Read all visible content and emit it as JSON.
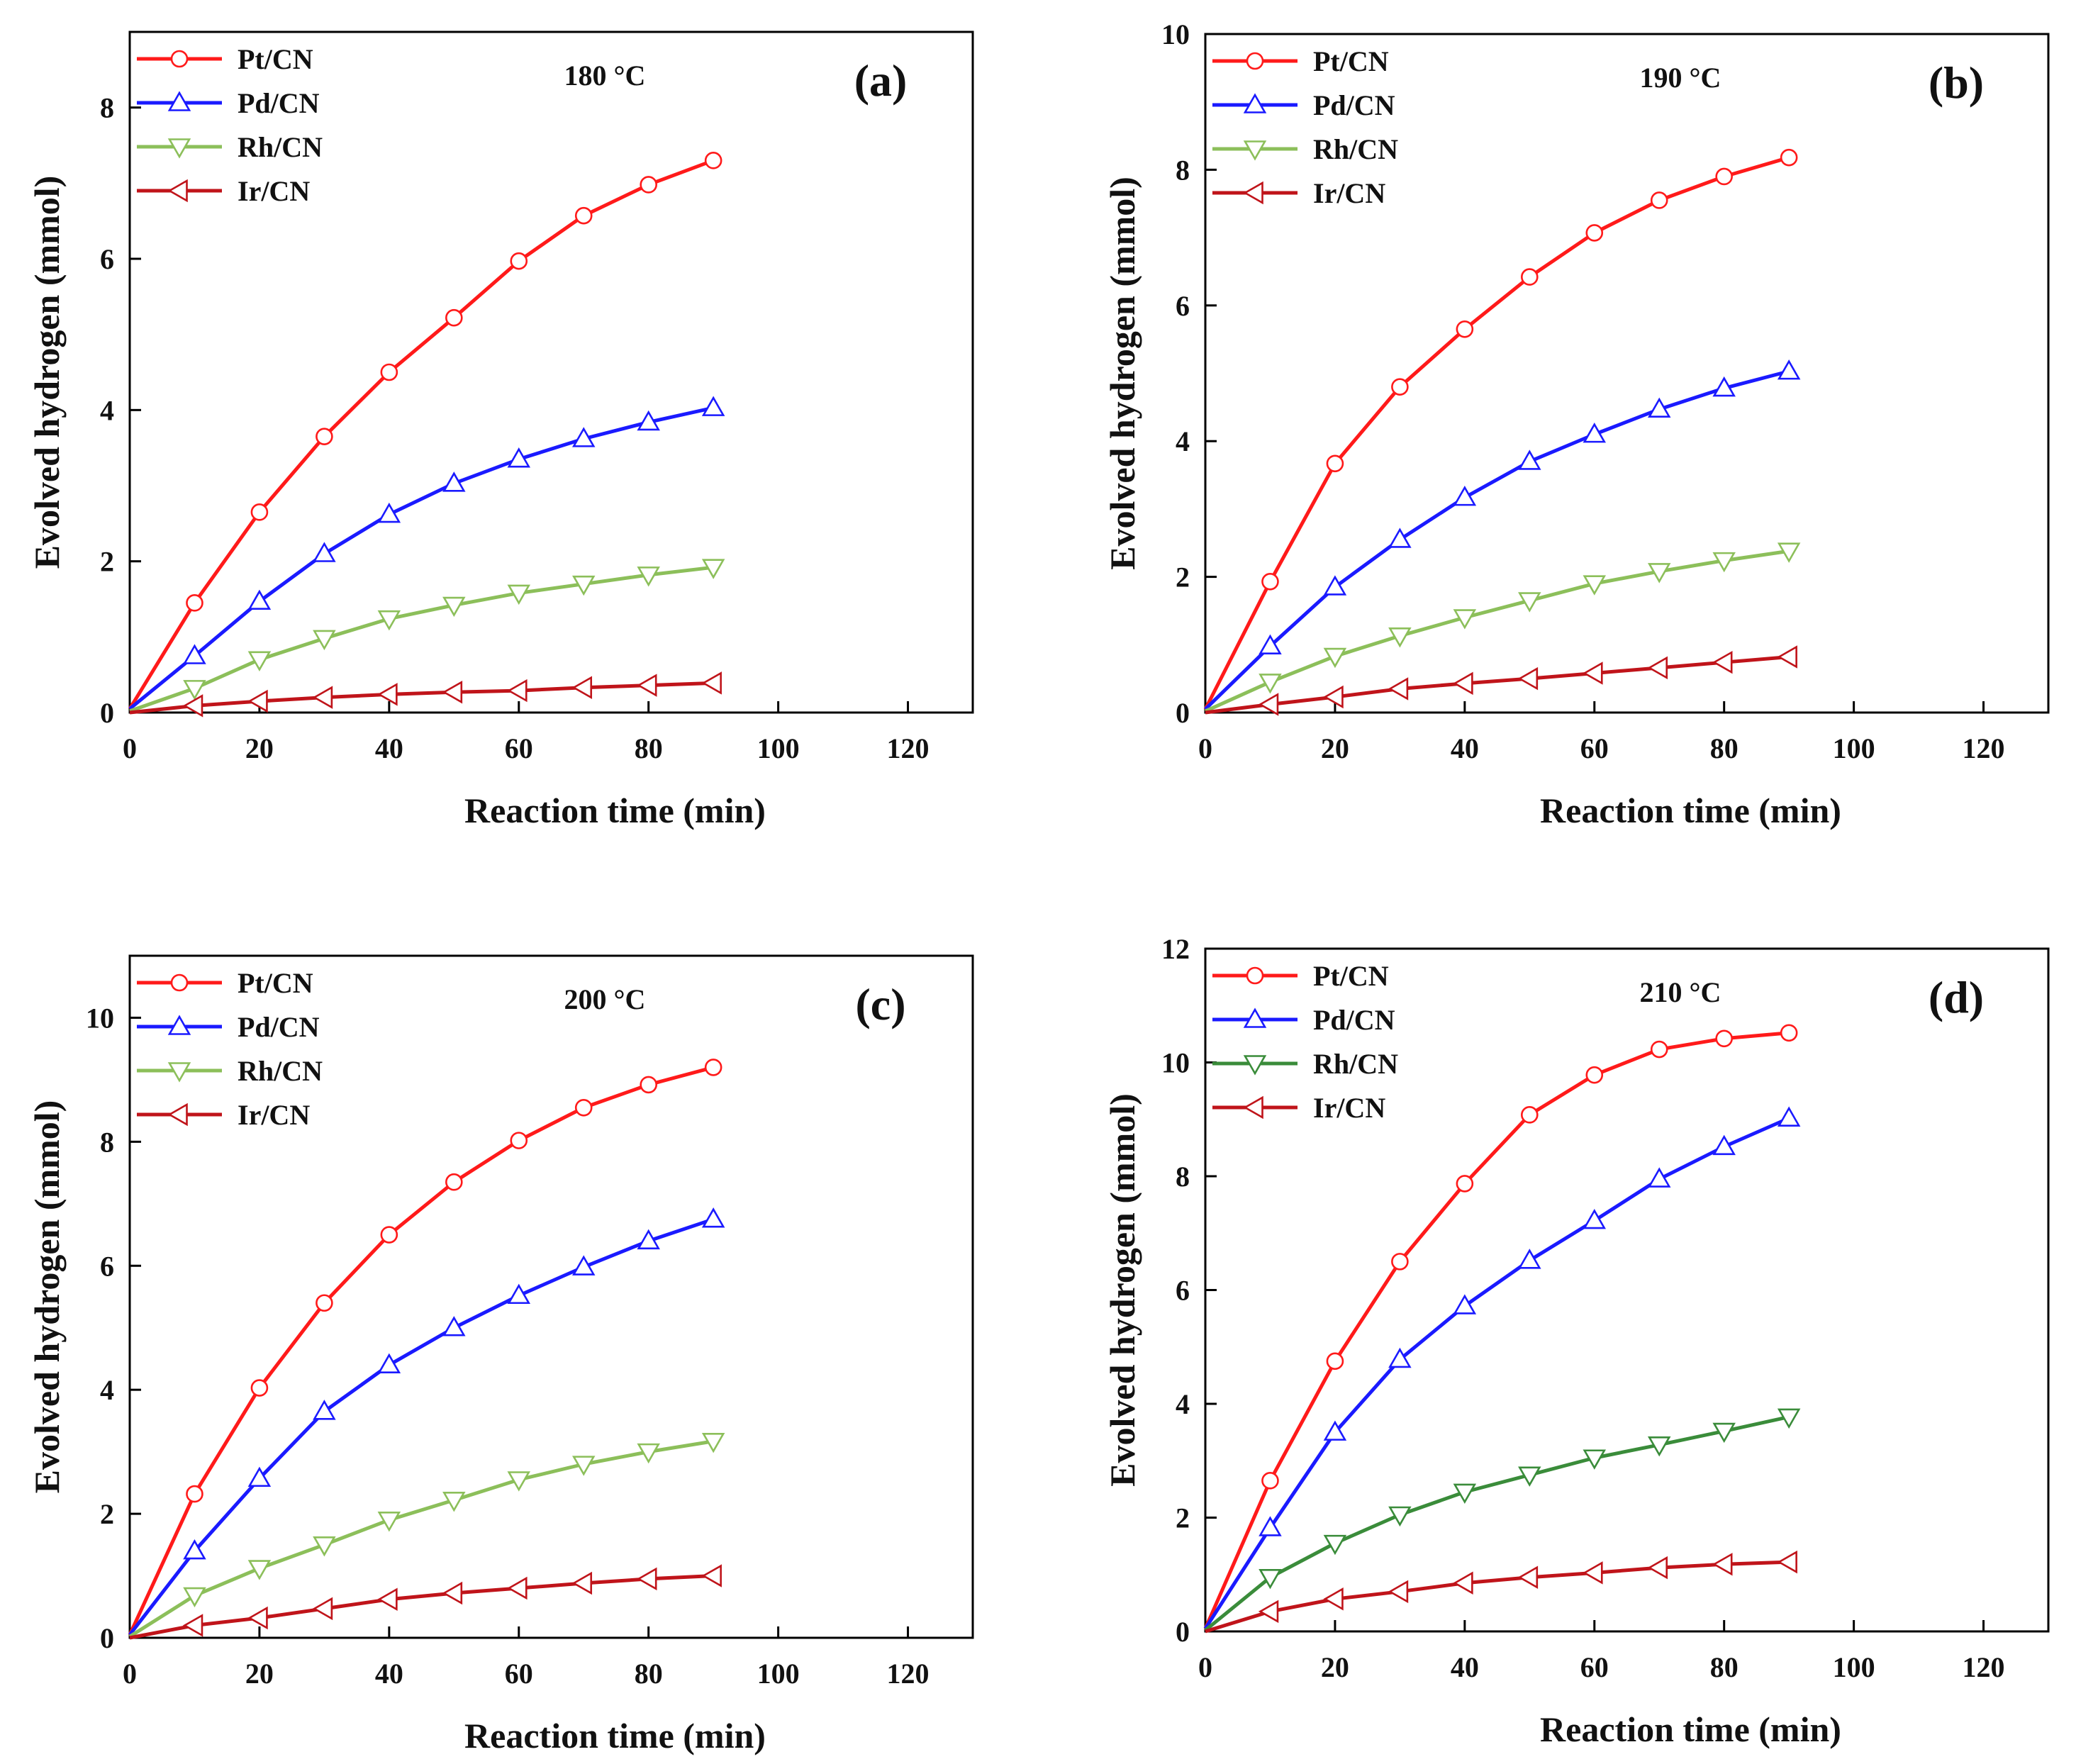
{
  "chart_data": [
    {
      "type": "line",
      "panel_label": "(a)",
      "temperature": "180 °C",
      "xlabel": "Reaction time (min)",
      "ylabel": "Evolved hydrogen (mmol)",
      "xlim": [
        0,
        130
      ],
      "ylim": [
        0,
        9
      ],
      "xticks": [
        0,
        20,
        40,
        60,
        80,
        100,
        120
      ],
      "yticks": [
        0,
        2,
        4,
        6,
        8
      ],
      "x": [
        0,
        10,
        20,
        30,
        40,
        50,
        60,
        70,
        80,
        90
      ],
      "series": [
        {
          "name": "Pt/CN",
          "color": "#ff1a1a",
          "marker": "circle",
          "values": [
            0.05,
            1.45,
            2.65,
            3.65,
            4.5,
            5.22,
            5.97,
            6.57,
            6.98,
            7.3
          ]
        },
        {
          "name": "Pd/CN",
          "color": "#1a1aff",
          "marker": "triangle-up",
          "values": [
            0.05,
            0.75,
            1.47,
            2.1,
            2.62,
            3.03,
            3.35,
            3.62,
            3.84,
            4.03
          ]
        },
        {
          "name": "Rh/CN",
          "color": "#8cbf5a",
          "marker": "triangle-down",
          "values": [
            0.02,
            0.32,
            0.7,
            0.98,
            1.24,
            1.42,
            1.58,
            1.7,
            1.82,
            1.92
          ]
        },
        {
          "name": "Ir/CN",
          "color": "#c0141a",
          "marker": "triangle-left",
          "values": [
            0.0,
            0.09,
            0.15,
            0.2,
            0.24,
            0.27,
            0.29,
            0.33,
            0.36,
            0.39
          ]
        }
      ]
    },
    {
      "type": "line",
      "panel_label": "(b)",
      "temperature": "190 °C",
      "xlabel": "Reaction time (min)",
      "ylabel": "Evolved hydrogen (mmol)",
      "xlim": [
        0,
        130
      ],
      "ylim": [
        0,
        10
      ],
      "xticks": [
        0,
        20,
        40,
        60,
        80,
        100,
        120
      ],
      "yticks": [
        0,
        2,
        4,
        6,
        8,
        10
      ],
      "x": [
        0,
        10,
        20,
        30,
        40,
        50,
        60,
        70,
        80,
        90
      ],
      "series": [
        {
          "name": "Pt/CN",
          "color": "#ff1a1a",
          "marker": "circle",
          "values": [
            0.05,
            1.93,
            3.67,
            4.8,
            5.65,
            6.42,
            7.07,
            7.55,
            7.9,
            8.18
          ]
        },
        {
          "name": "Pd/CN",
          "color": "#1a1aff",
          "marker": "triangle-up",
          "values": [
            0.05,
            0.98,
            1.85,
            2.55,
            3.17,
            3.7,
            4.1,
            4.47,
            4.78,
            5.03
          ]
        },
        {
          "name": "Rh/CN",
          "color": "#8cbf5a",
          "marker": "triangle-down",
          "values": [
            0.02,
            0.45,
            0.83,
            1.13,
            1.4,
            1.65,
            1.9,
            2.08,
            2.24,
            2.38
          ]
        },
        {
          "name": "Ir/CN",
          "color": "#c0141a",
          "marker": "triangle-left",
          "values": [
            0.0,
            0.12,
            0.23,
            0.35,
            0.43,
            0.5,
            0.58,
            0.66,
            0.74,
            0.82
          ]
        }
      ]
    },
    {
      "type": "line",
      "panel_label": "(c)",
      "temperature": "200 °C",
      "xlabel": "Reaction time (min)",
      "ylabel": "Evolved hydrogen (mmol)",
      "xlim": [
        0,
        130
      ],
      "ylim": [
        0,
        11
      ],
      "xticks": [
        0,
        20,
        40,
        60,
        80,
        100,
        120
      ],
      "yticks": [
        0,
        2,
        4,
        6,
        8,
        10
      ],
      "x": [
        0,
        10,
        20,
        30,
        40,
        50,
        60,
        70,
        80,
        90
      ],
      "series": [
        {
          "name": "Pt/CN",
          "color": "#ff1a1a",
          "marker": "circle",
          "values": [
            0.05,
            2.32,
            4.03,
            5.4,
            6.5,
            7.35,
            8.02,
            8.55,
            8.92,
            9.2
          ]
        },
        {
          "name": "Pd/CN",
          "color": "#1a1aff",
          "marker": "triangle-up",
          "values": [
            0.05,
            1.4,
            2.57,
            3.65,
            4.4,
            5.0,
            5.52,
            5.98,
            6.4,
            6.75
          ]
        },
        {
          "name": "Rh/CN",
          "color": "#8cbf5a",
          "marker": "triangle-down",
          "values": [
            0.02,
            0.68,
            1.12,
            1.5,
            1.9,
            2.22,
            2.55,
            2.8,
            3.0,
            3.17
          ]
        },
        {
          "name": "Ir/CN",
          "color": "#c0141a",
          "marker": "triangle-left",
          "values": [
            0.0,
            0.2,
            0.32,
            0.47,
            0.62,
            0.72,
            0.8,
            0.88,
            0.95,
            1.0
          ]
        }
      ]
    },
    {
      "type": "line",
      "panel_label": "(d)",
      "temperature": "210 °C",
      "xlabel": "Reaction time (min)",
      "ylabel": "Evolved hydrogen (mmol)",
      "xlim": [
        0,
        130
      ],
      "ylim": [
        0,
        12
      ],
      "xticks": [
        0,
        20,
        40,
        60,
        80,
        100,
        120
      ],
      "yticks": [
        0,
        2,
        4,
        6,
        8,
        10,
        12
      ],
      "x": [
        0,
        10,
        20,
        30,
        40,
        50,
        60,
        70,
        80,
        90
      ],
      "series": [
        {
          "name": "Pt/CN",
          "color": "#ff1a1a",
          "marker": "circle",
          "values": [
            0.05,
            2.65,
            4.75,
            6.5,
            7.87,
            9.08,
            9.78,
            10.23,
            10.42,
            10.52
          ]
        },
        {
          "name": "Pd/CN",
          "color": "#1a1aff",
          "marker": "triangle-up",
          "values": [
            0.05,
            1.82,
            3.5,
            4.78,
            5.72,
            6.52,
            7.22,
            7.95,
            8.52,
            9.02
          ]
        },
        {
          "name": "Rh/CN",
          "color": "#3a8c3a",
          "marker": "triangle-down",
          "values": [
            0.02,
            0.95,
            1.55,
            2.05,
            2.45,
            2.75,
            3.05,
            3.28,
            3.52,
            3.77
          ]
        },
        {
          "name": "Ir/CN",
          "color": "#c0141a",
          "marker": "triangle-left",
          "values": [
            0.0,
            0.35,
            0.57,
            0.7,
            0.85,
            0.95,
            1.03,
            1.12,
            1.18,
            1.22
          ]
        }
      ]
    }
  ]
}
